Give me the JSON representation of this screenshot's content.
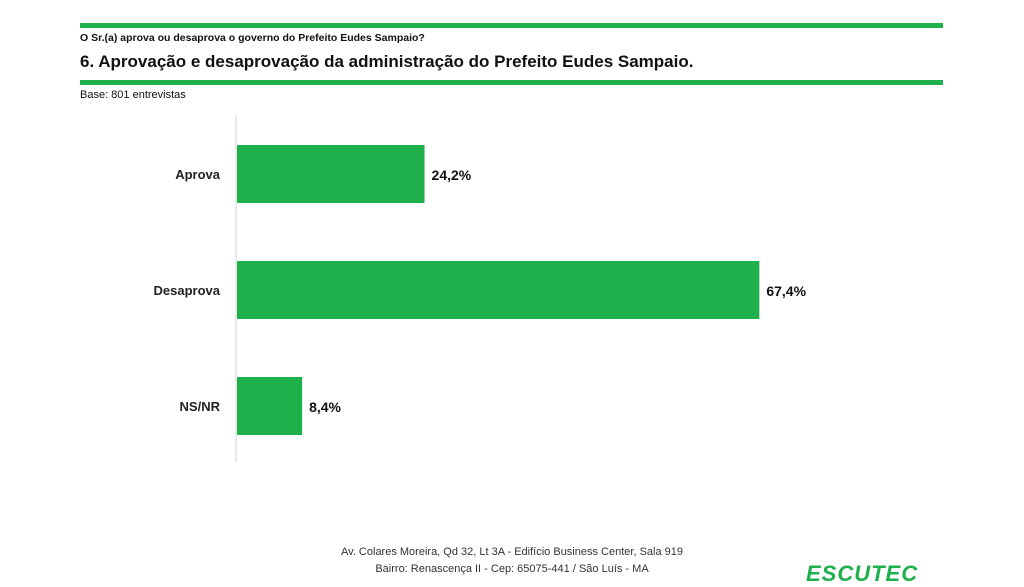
{
  "header": {
    "question": "O Sr.(a) aprova ou desaprova o governo do Prefeito Eudes Sampaio?",
    "title": "6. Aprovação e desaprovação da administração do Prefeito Eudes Sampaio.",
    "base": "Base: 801 entrevistas"
  },
  "chart_data": {
    "type": "bar",
    "orientation": "horizontal",
    "categories": [
      "Aprova",
      "Desaprova",
      "NS/NR"
    ],
    "values": [
      24.2,
      67.4,
      8.4
    ],
    "value_labels": [
      "24,2%",
      "67,4%",
      "8,4%"
    ],
    "xlim": [
      0,
      100
    ],
    "grid": false,
    "bar_color": "#1db04b"
  },
  "footer": {
    "line1": "Av. Colares Moreira, Qd 32, Lt 3A - Edifício Business Center, Sala 919",
    "line2": "Bairro: Renascença II - Cep: 65075-441 / São Luís - MA"
  },
  "logo": {
    "text": "ESCUTEC",
    "color": "#1db04b"
  }
}
